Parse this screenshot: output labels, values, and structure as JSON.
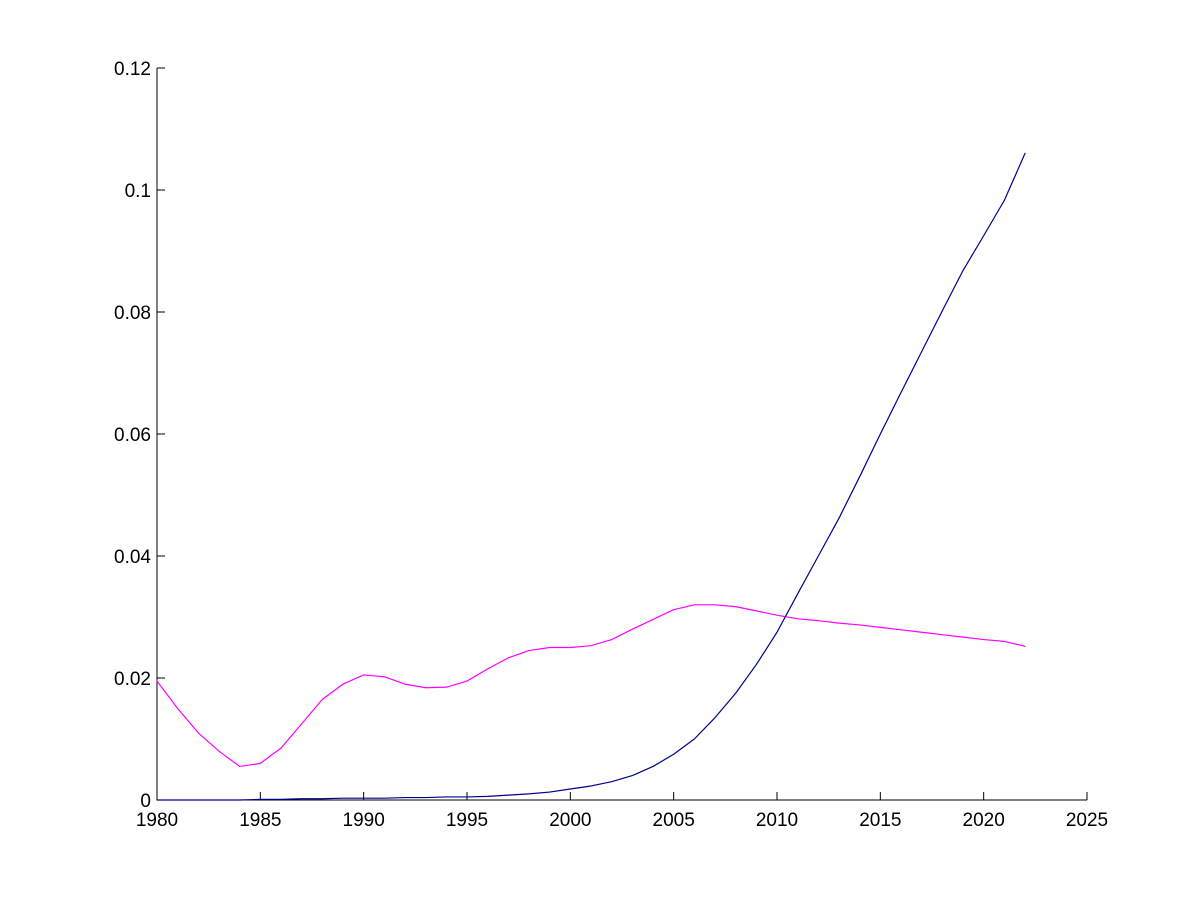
{
  "chart_data": {
    "type": "line",
    "title": "",
    "xlabel": "",
    "ylabel": "",
    "xlim": [
      1980,
      2025
    ],
    "ylim": [
      0,
      0.12
    ],
    "grid": false,
    "x_ticks": [
      1980,
      1985,
      1990,
      1995,
      2000,
      2005,
      2010,
      2015,
      2020,
      2025
    ],
    "x_tick_labels": [
      "1980",
      "1985",
      "1990",
      "1995",
      "2000",
      "2005",
      "2010",
      "2015",
      "2020",
      "2025"
    ],
    "y_ticks": [
      0,
      0.02,
      0.04,
      0.06,
      0.08,
      0.1,
      0.12
    ],
    "y_tick_labels": [
      "0",
      "0.02",
      "0.04",
      "0.06",
      "0.08",
      "0.1",
      "0.12"
    ],
    "series": [
      {
        "color": "#ff00ff",
        "x": [
          1980,
          1981,
          1982,
          1983,
          1984,
          1985,
          1986,
          1987,
          1988,
          1989,
          1990,
          1991,
          1992,
          1993,
          1994,
          1995,
          1996,
          1997,
          1998,
          1999,
          2000,
          2001,
          2002,
          2003,
          2004,
          2005,
          2006,
          2007,
          2008,
          2009,
          2010,
          2011,
          2012,
          2013,
          2014,
          2015,
          2016,
          2017,
          2018,
          2019,
          2020,
          2021,
          2022
        ],
        "y": [
          0.0195,
          0.015,
          0.011,
          0.008,
          0.0055,
          0.006,
          0.0085,
          0.0125,
          0.0165,
          0.019,
          0.0205,
          0.0202,
          0.019,
          0.0184,
          0.0185,
          0.0195,
          0.0215,
          0.0233,
          0.0245,
          0.025,
          0.025,
          0.0253,
          0.0263,
          0.028,
          0.0296,
          0.0312,
          0.032,
          0.032,
          0.0317,
          0.031,
          0.0303,
          0.0297,
          0.0294,
          0.029,
          0.0287,
          0.0283,
          0.0279,
          0.0275,
          0.0271,
          0.0267,
          0.0263,
          0.026,
          0.0252
        ]
      },
      {
        "color": "#00008b",
        "x": [
          1980,
          1981,
          1982,
          1983,
          1984,
          1985,
          1986,
          1987,
          1988,
          1989,
          1990,
          1991,
          1992,
          1993,
          1994,
          1995,
          1996,
          1997,
          1998,
          1999,
          2000,
          2001,
          2002,
          2003,
          2004,
          2005,
          2006,
          2007,
          2008,
          2009,
          2010,
          2011,
          2012,
          2013,
          2014,
          2015,
          2016,
          2017,
          2018,
          2019,
          2020,
          2021,
          2022
        ],
        "y": [
          0,
          0,
          0,
          0,
          0,
          0.0001,
          0.0001,
          0.0002,
          0.0002,
          0.0003,
          0.0003,
          0.0003,
          0.0004,
          0.0004,
          0.0005,
          0.0005,
          0.0006,
          0.0008,
          0.001,
          0.0013,
          0.0018,
          0.0023,
          0.003,
          0.004,
          0.0055,
          0.0075,
          0.01,
          0.0135,
          0.0175,
          0.0222,
          0.0275,
          0.0338,
          0.04,
          0.0462,
          0.053,
          0.06,
          0.0668,
          0.0735,
          0.0802,
          0.0868,
          0.0925,
          0.0983,
          0.106
        ]
      }
    ]
  }
}
